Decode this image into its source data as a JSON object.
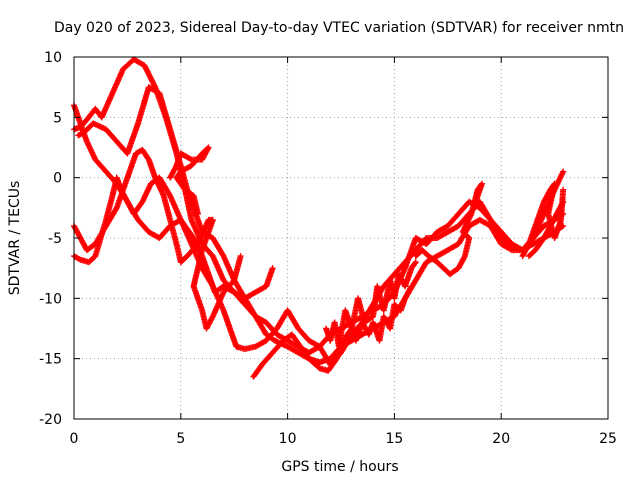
{
  "chart_data": {
    "type": "scatter",
    "title": "Day 020 of 2023, Sidereal Day-to-day VTEC variation (SDTVAR) for receiver nmtn",
    "xlabel": "GPS time / hours",
    "ylabel": "SDTVAR / TECUs",
    "xlim": [
      0,
      25
    ],
    "ylim": [
      -20,
      10
    ],
    "xticks": [
      0,
      5,
      10,
      15,
      20,
      25
    ],
    "yticks": [
      -20,
      -15,
      -10,
      -5,
      0,
      5,
      10
    ],
    "grid": true,
    "marker": "+",
    "colors": {
      "series": "#ff0000",
      "grid": "#a0a0a0",
      "axis": "#000000"
    },
    "series": [
      {
        "points": [
          [
            0.0,
            -4.0
          ],
          [
            0.3,
            -5.0
          ],
          [
            0.6,
            -6.0
          ],
          [
            1.0,
            -5.5
          ],
          [
            1.5,
            -4.0
          ],
          [
            2.0,
            -2.5
          ],
          [
            2.5,
            0.0
          ],
          [
            2.9,
            2.0
          ],
          [
            3.2,
            2.3
          ],
          [
            3.5,
            1.5
          ],
          [
            3.8,
            0.0
          ],
          [
            4.2,
            -1.5
          ],
          [
            4.5,
            -3.5
          ],
          [
            4.8,
            -5.5
          ]
        ]
      },
      {
        "points": [
          [
            0.0,
            -6.5
          ],
          [
            0.3,
            -6.8
          ],
          [
            0.7,
            -7.0
          ],
          [
            1.0,
            -6.5
          ],
          [
            1.5,
            -3.5
          ],
          [
            1.8,
            -1.5
          ],
          [
            2.0,
            0.0
          ],
          [
            2.2,
            -1.0
          ],
          [
            2.5,
            -2.0
          ],
          [
            2.8,
            -3.0
          ],
          [
            3.2,
            -2.0
          ],
          [
            3.6,
            -0.5
          ],
          [
            4.0,
            0.0
          ],
          [
            4.5,
            -1.5
          ],
          [
            5.0,
            -3.5
          ],
          [
            5.6,
            -5.0
          ],
          [
            6.0,
            -6.5
          ],
          [
            6.3,
            -8.0
          ],
          [
            6.6,
            -9.5
          ],
          [
            7.0,
            -9.0
          ],
          [
            7.5,
            -9.5
          ],
          [
            8.0,
            -10.0
          ],
          [
            8.5,
            -9.5
          ],
          [
            9.0,
            -9.0
          ],
          [
            9.3,
            -7.5
          ]
        ]
      },
      {
        "points": [
          [
            0.0,
            4.0
          ],
          [
            0.3,
            4.2
          ],
          [
            0.6,
            4.8
          ],
          [
            1.0,
            5.7
          ],
          [
            1.3,
            5.0
          ],
          [
            1.8,
            7.0
          ],
          [
            2.3,
            9.0
          ],
          [
            2.8,
            9.8
          ],
          [
            3.3,
            9.3
          ],
          [
            3.8,
            7.5
          ],
          [
            4.3,
            5.0
          ],
          [
            4.8,
            2.0
          ],
          [
            5.2,
            -1.0
          ],
          [
            5.5,
            -3.5
          ],
          [
            6.0,
            -5.5
          ],
          [
            6.5,
            -6.5
          ],
          [
            7.0,
            -8.5
          ],
          [
            7.5,
            -9.5
          ],
          [
            8.0,
            -10.5
          ],
          [
            8.5,
            -11.5
          ],
          [
            9.0,
            -13.0
          ],
          [
            9.4,
            -13.5
          ],
          [
            10.0,
            -14.0
          ],
          [
            10.5,
            -14.5
          ],
          [
            11.0,
            -15.0
          ],
          [
            11.5,
            -15.3
          ],
          [
            12.0,
            -15.0
          ],
          [
            12.5,
            -14.0
          ],
          [
            13.0,
            -13.5
          ],
          [
            13.5,
            -13.0
          ],
          [
            14.0,
            -12.5
          ],
          [
            14.5,
            -12.0
          ],
          [
            15.0,
            -11.5
          ],
          [
            15.5,
            -10.0
          ],
          [
            16.0,
            -8.5
          ],
          [
            16.5,
            -7.0
          ],
          [
            17.0,
            -6.5
          ],
          [
            17.5,
            -6.0
          ],
          [
            18.0,
            -5.5
          ],
          [
            18.5,
            -4.0
          ],
          [
            19.0,
            -3.5
          ],
          [
            19.5,
            -4.0
          ],
          [
            20.0,
            -5.5
          ],
          [
            20.5,
            -6.0
          ],
          [
            21.0,
            -6.0
          ],
          [
            21.5,
            -5.5
          ],
          [
            22.0,
            -5.0
          ],
          [
            22.5,
            -4.5
          ],
          [
            22.9,
            -4.0
          ]
        ]
      },
      {
        "points": [
          [
            0.0,
            6.0
          ],
          [
            0.3,
            4.5
          ],
          [
            0.6,
            3.0
          ],
          [
            1.0,
            1.5
          ],
          [
            1.5,
            0.5
          ],
          [
            2.0,
            -0.5
          ],
          [
            2.5,
            -2.0
          ],
          [
            3.0,
            -3.5
          ],
          [
            3.5,
            -4.5
          ],
          [
            4.0,
            -5.0
          ],
          [
            4.5,
            -4.0
          ],
          [
            5.0,
            -3.5
          ],
          [
            5.5,
            -5.5
          ],
          [
            6.0,
            -7.5
          ],
          [
            6.5,
            -9.0
          ],
          [
            7.0,
            -11.0
          ],
          [
            7.3,
            -12.5
          ],
          [
            7.6,
            -14.0
          ],
          [
            8.0,
            -14.2
          ],
          [
            8.5,
            -14.0
          ],
          [
            9.0,
            -13.5
          ],
          [
            9.5,
            -12.5
          ],
          [
            10.0,
            -11.0
          ],
          [
            10.5,
            -12.5
          ],
          [
            11.0,
            -13.5
          ],
          [
            11.5,
            -14.0
          ],
          [
            12.0,
            -15.5
          ],
          [
            12.5,
            -14.5
          ],
          [
            13.0,
            -13.0
          ],
          [
            13.5,
            -12.0
          ],
          [
            14.0,
            -10.5
          ],
          [
            14.5,
            -9.0
          ],
          [
            15.0,
            -8.0
          ],
          [
            15.5,
            -7.0
          ],
          [
            16.0,
            -6.0
          ],
          [
            16.5,
            -5.0
          ],
          [
            17.0,
            -5.0
          ],
          [
            17.5,
            -4.5
          ],
          [
            18.0,
            -4.0
          ],
          [
            18.5,
            -3.0
          ],
          [
            19.0,
            -2.0
          ],
          [
            19.5,
            -3.5
          ],
          [
            20.0,
            -4.5
          ],
          [
            20.5,
            -5.5
          ],
          [
            21.0,
            -6.0
          ],
          [
            21.5,
            -5.0
          ],
          [
            22.0,
            -4.0
          ],
          [
            22.5,
            -3.5
          ],
          [
            22.9,
            -3.0
          ]
        ]
      },
      {
        "points": [
          [
            0.2,
            3.5
          ],
          [
            0.5,
            3.8
          ],
          [
            0.9,
            4.5
          ],
          [
            1.5,
            4.0
          ],
          [
            2.0,
            3.0
          ],
          [
            2.5,
            2.0
          ],
          [
            3.0,
            4.5
          ],
          [
            3.5,
            7.5
          ],
          [
            4.0,
            7.0
          ],
          [
            4.5,
            4.0
          ],
          [
            5.0,
            1.0
          ],
          [
            5.3,
            -1.0
          ],
          [
            5.7,
            -3.0
          ],
          [
            6.0,
            -4.5
          ],
          [
            6.5,
            -5.0
          ],
          [
            7.0,
            -6.5
          ],
          [
            7.5,
            -8.5
          ],
          [
            8.0,
            -10.0
          ],
          [
            8.5,
            -11.5
          ],
          [
            9.0,
            -12.0
          ],
          [
            9.5,
            -13.0
          ],
          [
            10.0,
            -13.5
          ],
          [
            10.5,
            -14.0
          ],
          [
            11.0,
            -14.5
          ],
          [
            11.5,
            -14.0
          ],
          [
            12.0,
            -13.0
          ],
          [
            12.5,
            -12.5
          ],
          [
            13.0,
            -12.0
          ],
          [
            13.5,
            -11.5
          ],
          [
            14.0,
            -11.0
          ],
          [
            14.5,
            -10.5
          ],
          [
            15.0,
            -9.5
          ],
          [
            15.5,
            -7.5
          ],
          [
            16.0,
            -5.0
          ],
          [
            16.5,
            -5.5
          ],
          [
            17.0,
            -4.5
          ],
          [
            17.5,
            -4.0
          ],
          [
            18.0,
            -3.0
          ],
          [
            18.5,
            -2.0
          ],
          [
            19.0,
            -2.5
          ],
          [
            19.5,
            -3.5
          ],
          [
            20.0,
            -5.0
          ],
          [
            20.5,
            -5.8
          ],
          [
            21.0,
            -6.0
          ],
          [
            21.5,
            -5.0
          ],
          [
            22.0,
            -3.0
          ],
          [
            22.5,
            -1.0
          ],
          [
            22.9,
            0.5
          ]
        ]
      },
      {
        "points": [
          [
            4.8,
            -5.5
          ],
          [
            5.0,
            -7.0
          ],
          [
            5.3,
            -6.5
          ],
          [
            5.8,
            -5.5
          ],
          [
            6.3,
            -3.5
          ],
          [
            6.5,
            -3.5
          ],
          [
            6.0,
            -6.0
          ],
          [
            5.6,
            -9.0
          ],
          [
            6.0,
            -11.0
          ],
          [
            6.2,
            -12.5
          ],
          [
            6.5,
            -11.5
          ],
          [
            7.0,
            -9.5
          ],
          [
            7.5,
            -8.5
          ],
          [
            7.8,
            -6.5
          ]
        ]
      },
      {
        "points": [
          [
            4.5,
            0.0
          ],
          [
            4.8,
            1.0
          ],
          [
            5.0,
            2.0
          ],
          [
            5.5,
            1.5
          ],
          [
            6.0,
            1.5
          ],
          [
            6.3,
            2.5
          ],
          [
            6.0,
            2.0
          ],
          [
            5.5,
            1.0
          ],
          [
            5.0,
            0.5
          ],
          [
            4.8,
            0.0
          ],
          [
            5.2,
            -1.0
          ],
          [
            5.6,
            -1.5
          ],
          [
            5.8,
            -3.0
          ]
        ]
      },
      {
        "points": [
          [
            8.4,
            -16.5
          ],
          [
            8.8,
            -15.5
          ],
          [
            9.3,
            -14.5
          ],
          [
            9.8,
            -13.5
          ],
          [
            10.2,
            -13.0
          ],
          [
            10.6,
            -14.0
          ],
          [
            11.0,
            -15.0
          ],
          [
            11.5,
            -15.8
          ],
          [
            11.9,
            -16.0
          ],
          [
            12.3,
            -15.0
          ],
          [
            12.6,
            -13.5
          ],
          [
            13.0,
            -12.5
          ],
          [
            13.3,
            -10.0
          ],
          [
            13.6,
            -12.0
          ],
          [
            14.0,
            -11.5
          ],
          [
            14.2,
            -9.0
          ],
          [
            14.5,
            -11.0
          ],
          [
            14.8,
            -8.5
          ],
          [
            15.0,
            -10.0
          ],
          [
            15.2,
            -8.0
          ],
          [
            15.5,
            -9.0
          ],
          [
            15.8,
            -7.5
          ],
          [
            16.0,
            -7.0
          ]
        ]
      },
      {
        "points": [
          [
            11.8,
            -12.5
          ],
          [
            12.0,
            -13.5
          ],
          [
            12.2,
            -12.0
          ],
          [
            12.4,
            -14.0
          ],
          [
            12.7,
            -11.0
          ],
          [
            13.0,
            -12.5
          ],
          [
            13.2,
            -13.5
          ],
          [
            13.5,
            -12.0
          ],
          [
            13.8,
            -13.0
          ],
          [
            14.0,
            -12.0
          ],
          [
            14.3,
            -13.5
          ],
          [
            14.5,
            -11.5
          ],
          [
            14.8,
            -12.5
          ],
          [
            15.0,
            -10.5
          ],
          [
            15.3,
            -11.0
          ],
          [
            15.5,
            -10.0
          ],
          [
            15.8,
            -9.0
          ]
        ]
      },
      {
        "points": [
          [
            16.0,
            -6.5
          ],
          [
            16.3,
            -6.0
          ],
          [
            16.6,
            -6.5
          ],
          [
            17.0,
            -7.0
          ],
          [
            17.3,
            -7.5
          ],
          [
            17.6,
            -8.0
          ],
          [
            18.0,
            -7.5
          ],
          [
            18.3,
            -6.5
          ],
          [
            18.5,
            -5.0
          ],
          [
            18.2,
            -4.5
          ],
          [
            18.6,
            -3.0
          ],
          [
            18.9,
            -1.0
          ],
          [
            19.1,
            -0.5
          ],
          [
            18.8,
            -2.0
          ]
        ]
      },
      {
        "points": [
          [
            21.0,
            -6.5
          ],
          [
            21.3,
            -5.5
          ],
          [
            21.6,
            -4.0
          ],
          [
            22.0,
            -2.0
          ],
          [
            22.3,
            -1.0
          ],
          [
            22.5,
            -0.5
          ],
          [
            22.2,
            -3.0
          ],
          [
            22.5,
            -5.0
          ],
          [
            22.8,
            -3.5
          ],
          [
            22.9,
            -1.0
          ]
        ]
      },
      {
        "points": [
          [
            21.3,
            -6.5
          ],
          [
            21.6,
            -6.0
          ],
          [
            22.0,
            -5.0
          ],
          [
            22.3,
            -4.0
          ],
          [
            22.6,
            -3.0
          ],
          [
            22.9,
            -2.0
          ]
        ]
      }
    ]
  }
}
